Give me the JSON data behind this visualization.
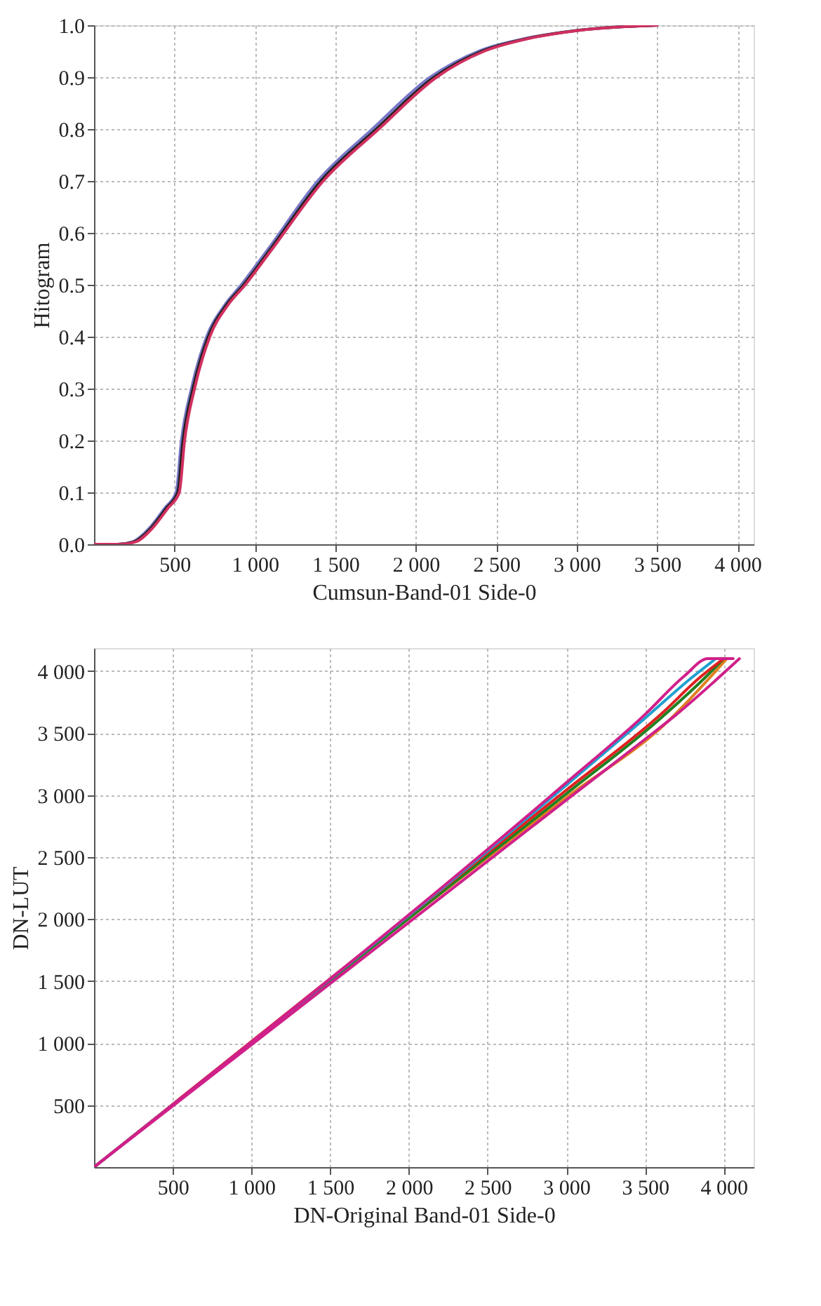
{
  "chart_data": [
    {
      "type": "line",
      "xlabel": "Cumsun-Band-01 Side-0",
      "ylabel": "Hitogram",
      "xlim": [
        0,
        4100
      ],
      "ylim": [
        0,
        1
      ],
      "xticks": [
        500,
        {
          "value": 1000,
          "label": "1 000"
        },
        {
          "value": 1500,
          "label": "1 500"
        },
        {
          "value": 2000,
          "label": "2 000"
        },
        {
          "value": 2500,
          "label": "2 500"
        },
        {
          "value": 3000,
          "label": "3 000"
        },
        {
          "value": 3500,
          "label": "3 500"
        },
        {
          "value": 4000,
          "label": "4 000"
        }
      ],
      "yticks": [
        {
          "value": 0,
          "label": "0.0"
        },
        0.1,
        0.2,
        0.3,
        0.4,
        0.5,
        0.6,
        0.7,
        0.8,
        0.9,
        {
          "value": 1,
          "label": "1.0"
        }
      ],
      "grid": true,
      "line_style": "solid",
      "series": [
        {
          "color": "#7878c8",
          "x": [
            0,
            140,
            240,
            340,
            440,
            510,
            543,
            605,
            700,
            810,
            915,
            1085,
            1390,
            1730,
            2090,
            2390,
            2690,
            3000,
            3500
          ],
          "values": [
            0,
            0,
            0.005,
            0.03,
            0.07,
            0.1,
            0.2,
            0.3,
            0.4,
            0.46,
            0.5,
            0.57,
            0.7,
            0.8,
            0.9,
            0.95,
            0.975,
            0.99,
            1.0
          ]
        },
        {
          "color": "#202020",
          "x": [
            0,
            150,
            250,
            350,
            450,
            520,
            553,
            615,
            710,
            820,
            930,
            1100,
            1410,
            1755,
            2115,
            2410,
            2700,
            3000,
            3500
          ],
          "values": [
            0,
            0,
            0.005,
            0.03,
            0.07,
            0.1,
            0.2,
            0.3,
            0.4,
            0.46,
            0.5,
            0.57,
            0.7,
            0.8,
            0.9,
            0.95,
            0.975,
            0.99,
            1.0
          ]
        },
        {
          "color": "#d03060",
          "x": [
            0,
            160,
            260,
            360,
            460,
            530,
            563,
            625,
            720,
            830,
            940,
            1110,
            1425,
            1770,
            2130,
            2425,
            2710,
            3010,
            3500
          ],
          "values": [
            0,
            0,
            0.005,
            0.03,
            0.07,
            0.1,
            0.2,
            0.3,
            0.4,
            0.46,
            0.5,
            0.57,
            0.7,
            0.8,
            0.9,
            0.95,
            0.975,
            0.99,
            1.0
          ]
        }
      ]
    },
    {
      "type": "line",
      "xlabel": "DN-Original Band-01 Side-0",
      "ylabel": "DN-LUT",
      "xlim": [
        0,
        4190
      ],
      "ylim": [
        0,
        4185
      ],
      "xticks": [
        500,
        {
          "value": 1000,
          "label": "1 000"
        },
        {
          "value": 1500,
          "label": "1 500"
        },
        {
          "value": 2000,
          "label": "2 000"
        },
        {
          "value": 2500,
          "label": "2 500"
        },
        {
          "value": 3000,
          "label": "3 000"
        },
        {
          "value": 3500,
          "label": "3 500"
        },
        {
          "value": 4000,
          "label": "4 000"
        }
      ],
      "yticks": [
        500,
        {
          "value": 1000,
          "label": "1 000"
        },
        {
          "value": 1500,
          "label": "1 500"
        },
        {
          "value": 2000,
          "label": "2 000"
        },
        {
          "value": 2500,
          "label": "2 500"
        },
        {
          "value": 3000,
          "label": "3 000"
        },
        {
          "value": 3500,
          "label": "3 500"
        },
        {
          "value": 4000,
          "label": "4 000"
        }
      ],
      "grid": true,
      "line_style": "solid",
      "series": [
        {
          "color": "#e08020",
          "x": [
            0,
            3000,
            3650,
            3950,
            4020
          ],
          "values": [
            0,
            2980,
            3600,
            4000,
            4100
          ]
        },
        {
          "color": "#208020",
          "x": [
            0,
            3000,
            3600,
            3900,
            4000
          ],
          "values": [
            0,
            3010,
            3620,
            3970,
            4100
          ]
        },
        {
          "color": "#e02020",
          "x": [
            0,
            3000,
            3600,
            3850,
            4000
          ],
          "values": [
            0,
            3040,
            3650,
            3950,
            4100
          ]
        },
        {
          "color": "#20a0d0",
          "x": [
            0,
            3000,
            3500,
            3800,
            3950
          ],
          "values": [
            0,
            3080,
            3620,
            3950,
            4100
          ]
        },
        {
          "color": "#d0208a",
          "x": [
            0,
            3000,
            3500,
            3750,
            3900,
            4060
          ],
          "values": [
            0,
            3100,
            3650,
            3960,
            4100,
            4100
          ]
        },
        {
          "color": "#d0208a",
          "x": [
            0,
            3000,
            3500,
            3700,
            4100
          ],
          "values": [
            0,
            2960,
            3450,
            3650,
            4100
          ]
        }
      ]
    }
  ]
}
